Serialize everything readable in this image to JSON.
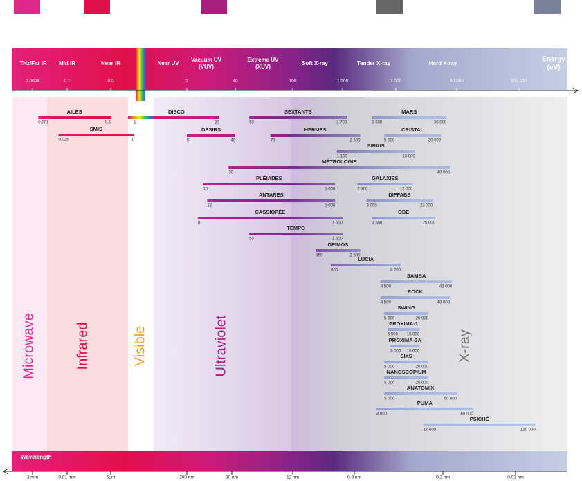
{
  "header": {
    "bands": [
      [
        "THz/Far IR"
      ],
      [
        "Mid IR"
      ],
      [
        "Near IR"
      ],
      [
        "Near UV"
      ],
      [
        "Vacuum UV",
        "(VUV)"
      ],
      [
        "Extreme UV",
        "(XUV)"
      ],
      [
        "Soft X-ray"
      ],
      [
        "Tender X-ray"
      ],
      [
        "Hard X-ray"
      ]
    ],
    "energy_title": [
      "Energy",
      "(eV)"
    ],
    "energy_ticks": [
      0.0004,
      0.1,
      0.5,
      5,
      40,
      100,
      {
        "value": 1500,
        "label": "1 500"
      },
      {
        "value": 7000,
        "label": "7 000"
      },
      {
        "value": 50000,
        "label": "50 000"
      },
      {
        "value": 100000,
        "label": "100 000"
      }
    ]
  },
  "regions": [
    "Microwave",
    "Infrared",
    "Visible",
    "Ultraviolet",
    "X-ray"
  ],
  "beamlines": [
    {
      "name": "AILES",
      "range": [
        0.001,
        0.5
      ],
      "range_labels": [
        "0.001",
        "0.5"
      ]
    },
    {
      "name": "SMIS",
      "range": [
        0.025,
        1
      ],
      "range_labels": [
        "0.025",
        "1"
      ]
    },
    {
      "name": "DISCO",
      "range": [
        1,
        20
      ],
      "range_labels": [
        "1",
        "20"
      ]
    },
    {
      "name": "DESIRS",
      "range": [
        5,
        40
      ],
      "range_labels": [
        "5",
        "40"
      ]
    },
    {
      "name": "SEXTANTS",
      "range": [
        50,
        1700
      ],
      "range_labels": [
        "50",
        "1 700"
      ]
    },
    {
      "name": "HERMES",
      "range": [
        70,
        2500
      ],
      "range_labels": [
        "70",
        "2 500"
      ]
    },
    {
      "name": "MARS",
      "range": [
        3500,
        36000
      ],
      "range_labels": [
        "3 500",
        "36 000"
      ]
    },
    {
      "name": "CRISTAL",
      "range": [
        5000,
        30000
      ],
      "range_labels": [
        "5 000",
        "30 000"
      ]
    },
    {
      "name": "SIRIUS",
      "range": [
        1100,
        13000
      ],
      "range_labels": [
        "1 100",
        "13 000"
      ]
    },
    {
      "name": "MÉTROLOGIE",
      "range": [
        30,
        40000
      ],
      "range_labels": [
        "30",
        "40 000"
      ]
    },
    {
      "name": "PLÉIADES",
      "range": [
        10,
        1000
      ],
      "range_labels": [
        "10",
        "1 000"
      ]
    },
    {
      "name": "GALAXIES",
      "range": [
        2300,
        12000
      ],
      "range_labels": [
        "2 300",
        "12 000"
      ]
    },
    {
      "name": "ANTARES",
      "range": [
        12,
        1000
      ],
      "range_labels": [
        "12",
        "1 000"
      ]
    },
    {
      "name": "DIFFABS",
      "range": [
        3000,
        23000
      ],
      "range_labels": [
        "3 000",
        "23 000"
      ]
    },
    {
      "name": "CASSIOPÉE",
      "range": [
        8,
        1500
      ],
      "range_labels": [
        "8",
        "1 500"
      ]
    },
    {
      "name": "ODE",
      "range": [
        3500,
        25000
      ],
      "range_labels": [
        "3 500",
        "25 000"
      ]
    },
    {
      "name": "TEMPO",
      "range": [
        50,
        1500
      ],
      "range_labels": [
        "50",
        "1 500"
      ]
    },
    {
      "name": "DEIMOS",
      "range": [
        350,
        2500
      ],
      "range_labels": [
        "350",
        "2 500"
      ]
    },
    {
      "name": "LUCIA",
      "range": [
        800,
        8200
      ],
      "range_labels": [
        "800",
        "8 200"
      ]
    },
    {
      "name": "SAMBA",
      "range": [
        4500,
        43000
      ],
      "range_labels": [
        "4 500",
        "43 000"
      ]
    },
    {
      "name": "ROCK",
      "range": [
        4500,
        40000
      ],
      "range_labels": [
        "4 500",
        "40 000"
      ]
    },
    {
      "name": "SWING",
      "range": [
        5000,
        20000
      ],
      "range_labels": [
        "5 000",
        "20 000"
      ]
    },
    {
      "name": "PROXIMA-1",
      "range": [
        5500,
        15000
      ],
      "range_labels": [
        "5 500",
        "15 000"
      ]
    },
    {
      "name": "PROXIMA-2A",
      "range": [
        6000,
        15000
      ],
      "range_labels": [
        "6 000",
        "15 000"
      ]
    },
    {
      "name": "SIXS",
      "range": [
        5000,
        20000
      ],
      "range_labels": [
        "5 000",
        "20 000"
      ]
    },
    {
      "name": "NANOSCOPIUM",
      "range": [
        5000,
        20000
      ],
      "range_labels": [
        "5 000",
        "20 000"
      ]
    },
    {
      "name": "ANATOMIX",
      "range": [
        5000,
        50000
      ],
      "range_labels": [
        "5 000",
        "50 000"
      ]
    },
    {
      "name": "PUMA",
      "range": [
        4000,
        60000
      ],
      "range_labels": [
        "4 000",
        "60 000"
      ]
    },
    {
      "name": "PSICHÉ",
      "range": [
        17000,
        120000
      ],
      "range_labels": [
        "17 000",
        "120 000"
      ]
    }
  ],
  "footer": {
    "title": "Wavelength",
    "ticks": [
      "3 mm",
      "0.01 mm",
      "5µm",
      "200 nm",
      "30 nm",
      "12 nm",
      "0.8 nm",
      "0.2 nm",
      "0.01 nm"
    ]
  }
}
